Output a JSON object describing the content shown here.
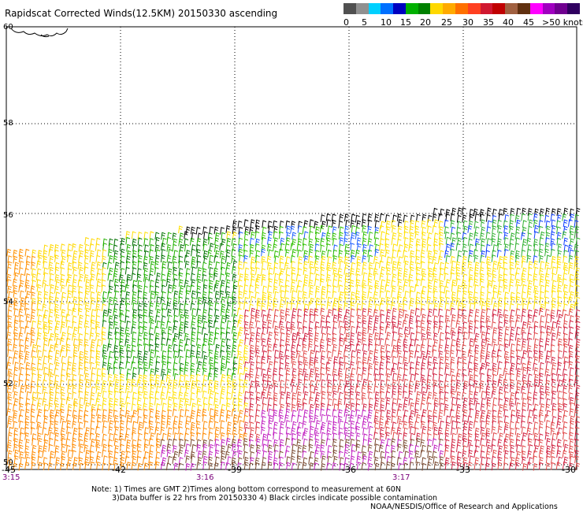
{
  "title": "Rapidscat Corrected Winds(12.5KM) 20150330 ascending",
  "legend": {
    "colors": [
      "#505050",
      "#909090",
      "#00d0ff",
      "#0070ff",
      "#0000c0",
      "#00b000",
      "#008000",
      "#ffd800",
      "#ffaa00",
      "#ff7000",
      "#ff4020",
      "#d01830",
      "#c00000",
      "#a06040",
      "#603010",
      "#ff00ff",
      "#a000c0",
      "#700090",
      "#300060"
    ],
    "labels": [
      "0",
      "5",
      "10",
      "15",
      "20",
      "25",
      "30",
      "35",
      "40",
      "45",
      ">50 knots"
    ]
  },
  "map": {
    "lat_labels": [
      "60",
      "58",
      "56",
      "54",
      "52",
      "50"
    ],
    "lon_labels": [
      "-45",
      "-42",
      "-39",
      "-36",
      "-33",
      "-30"
    ],
    "time_labels": [
      "3:15",
      "3:16",
      "3:17"
    ]
  },
  "notes": {
    "line1": "Note: 1) Times are GMT 2)Times along bottom correspond to measurement at 60N",
    "line2": "3)Data buffer is 22 hrs from 20150330 4) Black circles indicate possible contamination"
  },
  "credit": "NOAA/NESDIS/Office of Research and Applications"
}
